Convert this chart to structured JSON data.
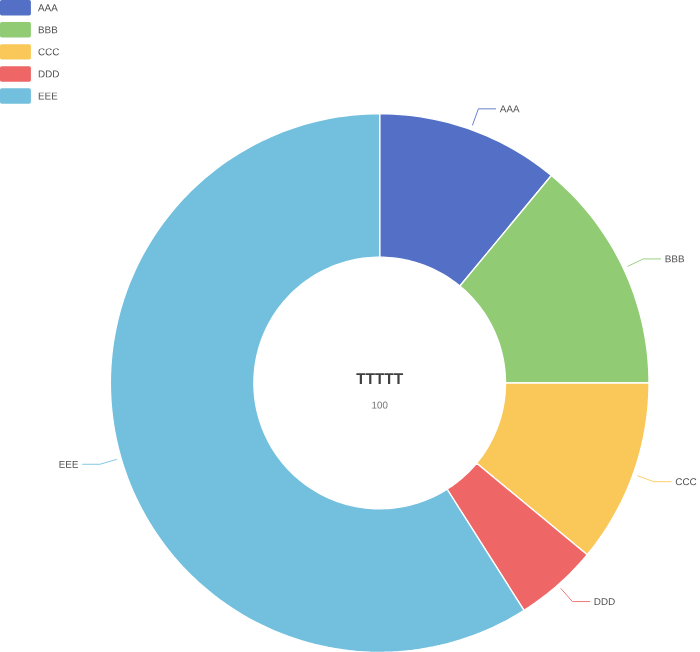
{
  "chart_data": {
    "type": "donut",
    "title": "TTTTT",
    "subtitle": "100",
    "categories": [
      "AAA",
      "BBB",
      "CCC",
      "DDD",
      "EEE"
    ],
    "values": [
      11,
      14,
      11,
      5,
      59
    ],
    "colors": [
      "#5470c6",
      "#91cc75",
      "#fac858",
      "#ee6666",
      "#73c0de"
    ],
    "legend": "top left"
  }
}
